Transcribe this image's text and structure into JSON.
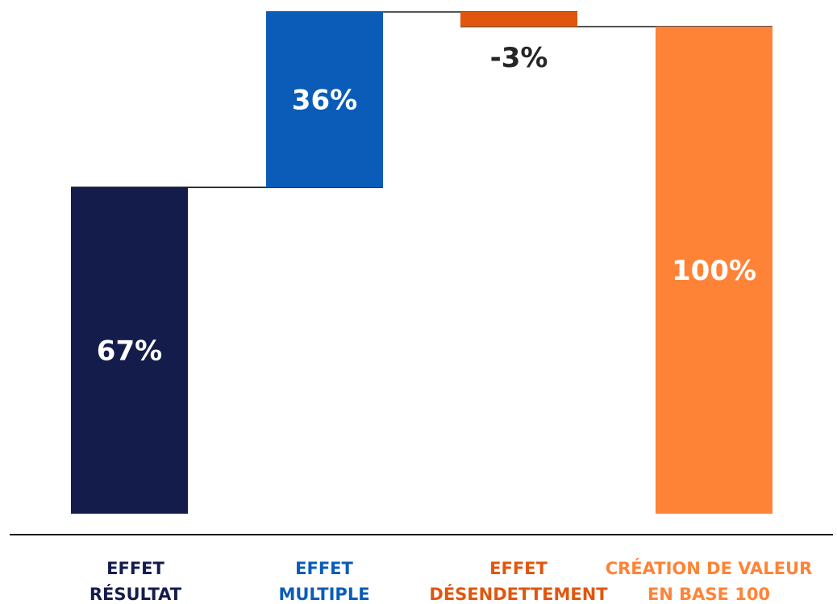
{
  "chart_data": {
    "type": "bar",
    "subtype": "waterfall",
    "categories": [
      [
        "EFFET",
        "RÉSULTAT"
      ],
      [
        "EFFET",
        "MULTIPLE"
      ],
      [
        "EFFET",
        "DÉSENDETTEMENT"
      ],
      [
        "CRÉATION DE VALEUR",
        "EN BASE 100"
      ]
    ],
    "values": [
      67,
      36,
      -3,
      100
    ],
    "value_labels": [
      "67%",
      "36%",
      "-3%",
      "100%"
    ],
    "is_total": [
      false,
      false,
      false,
      true
    ],
    "ylim": [
      0,
      105
    ],
    "colors": [
      "#141c4c",
      "#0a5cb8",
      "#e0560e",
      "#ff8336"
    ],
    "label_colors": [
      "#ffffff",
      "#ffffff",
      "#262626",
      "#ffffff"
    ],
    "category_colors": [
      "#141c4c",
      "#0a5cb8",
      "#e0560e",
      "#ff8336"
    ],
    "connector_color": "#1a1a1a",
    "baseline_color": "#1a1a1a",
    "grid": false,
    "legend": "none"
  }
}
